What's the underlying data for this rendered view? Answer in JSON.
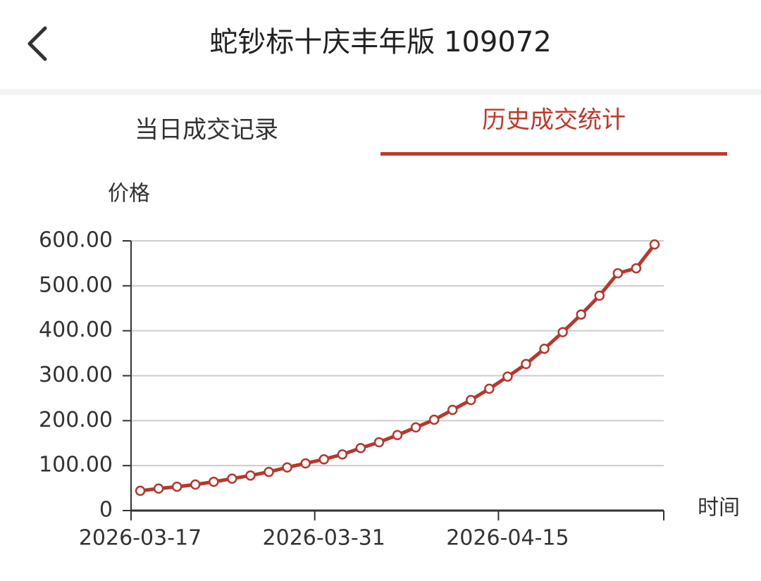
{
  "header": {
    "title": "蛇钞标十庆丰年版 109072"
  },
  "tabs": [
    "当日成交记录",
    "历史成交统计"
  ],
  "chart_data": {
    "type": "line",
    "y_label": "价格",
    "x_label": "时间",
    "categories": [
      "2026-03-17",
      null,
      null,
      null,
      null,
      null,
      null,
      null,
      null,
      null,
      "2026-03-31",
      null,
      null,
      null,
      null,
      null,
      null,
      null,
      null,
      null,
      "2026-04-15",
      null,
      null,
      null,
      null,
      null,
      null,
      null,
      null
    ],
    "values": [
      44,
      49,
      53,
      58,
      64,
      71,
      78,
      86,
      96,
      105,
      114,
      125,
      139,
      152,
      168,
      185,
      202,
      224,
      246,
      271,
      298,
      326,
      360,
      397,
      436,
      478,
      528,
      539,
      592
    ],
    "color": "#b5382e",
    "ylim": [
      0,
      600
    ],
    "yticks": [
      0,
      {
        "value": 100,
        "label": "100.00"
      },
      {
        "value": 200,
        "label": "200.00"
      },
      {
        "value": 300,
        "label": "300.00"
      },
      {
        "value": 400,
        "label": "400.00"
      },
      {
        "value": 500,
        "label": "500.00"
      },
      {
        "value": 600,
        "label": "600.00"
      }
    ],
    "grid": true
  }
}
